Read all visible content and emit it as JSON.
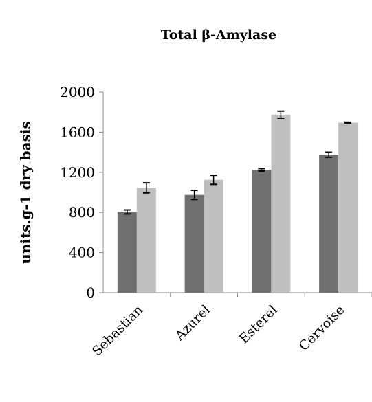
{
  "chart_data": {
    "type": "bar",
    "title": "Total β-Amylase",
    "xlabel": "",
    "ylabel": "units.g-1 dry basis",
    "ylim": [
      0,
      2000
    ],
    "yticks": [
      "0",
      "400",
      "800",
      "1200",
      "1600",
      "2000"
    ],
    "grid": false,
    "legend": "none",
    "categories": [
      "Sebastian",
      "Azurel",
      "Esterel",
      "Cervoise"
    ],
    "series": [
      {
        "values": [
          805,
          975,
          1225,
          1375
        ],
        "errors": [
          20,
          45,
          12,
          25
        ],
        "color": "#707070"
      },
      {
        "values": [
          1045,
          1125,
          1775,
          1695
        ],
        "errors": [
          50,
          45,
          35,
          5
        ],
        "color": "#bfbfbf"
      }
    ]
  }
}
